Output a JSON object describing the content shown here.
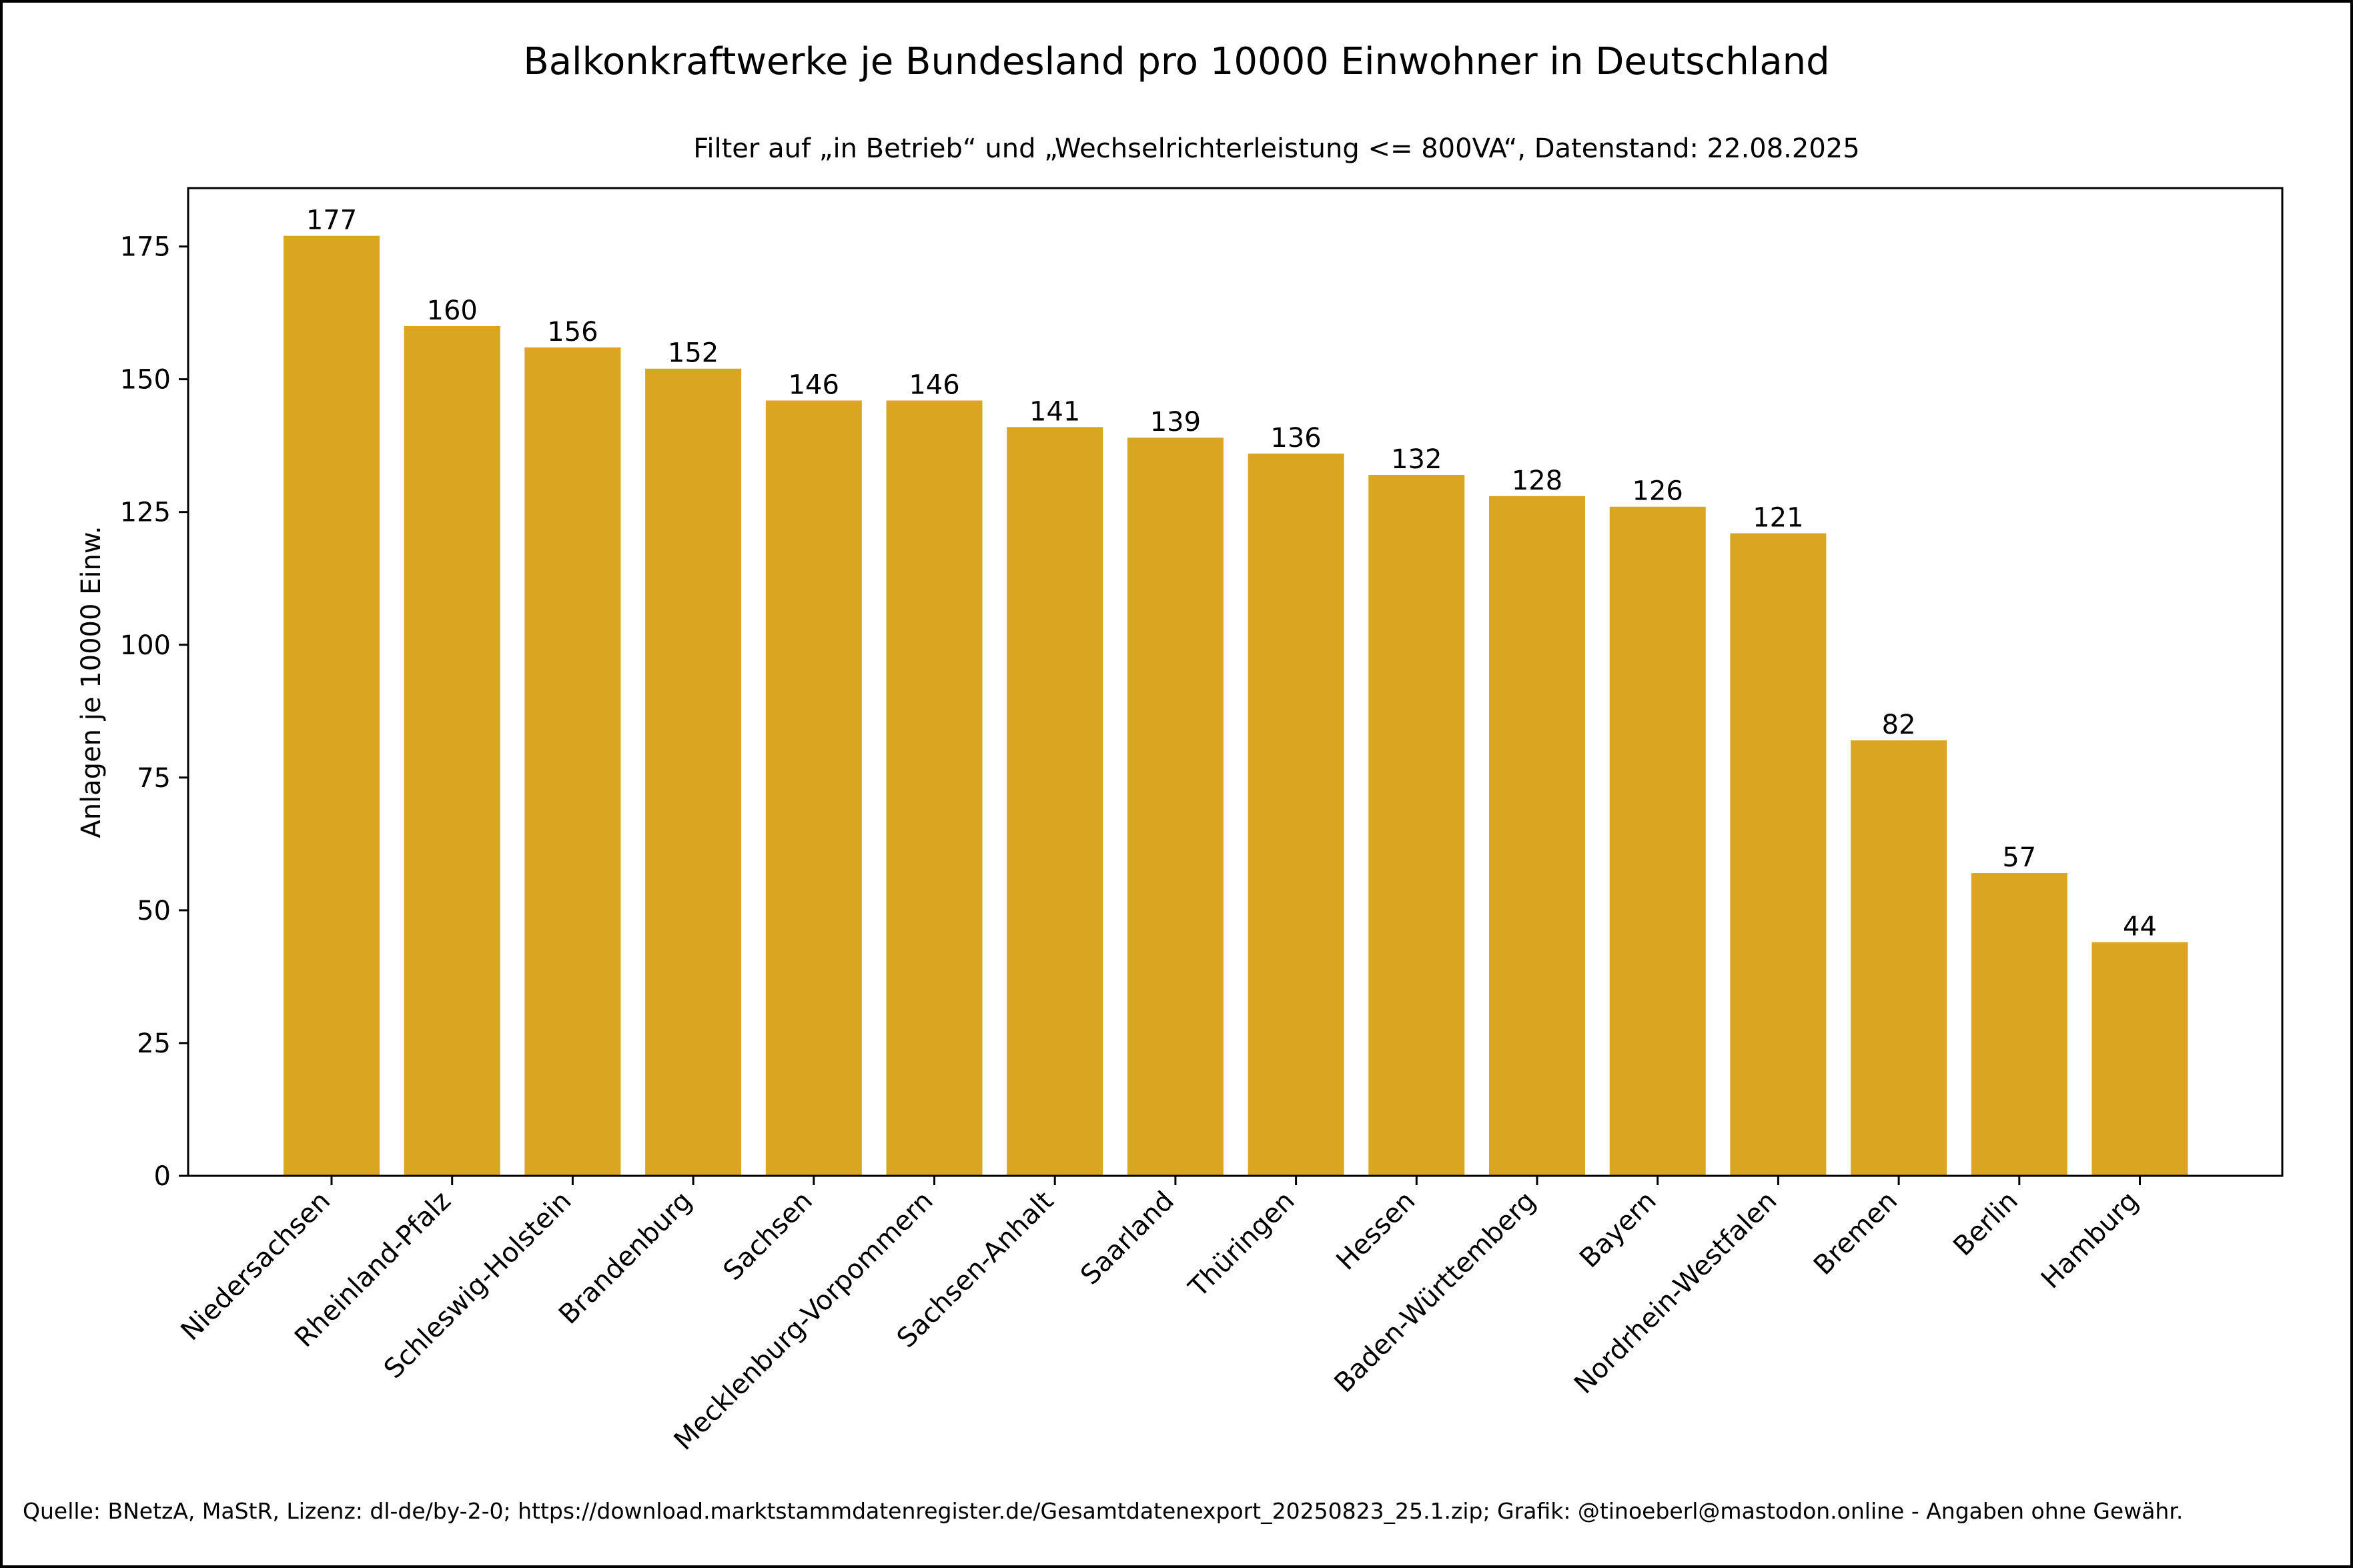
{
  "chart_data": {
    "type": "bar",
    "title": "Balkonkraftwerke je Bundesland pro 10000 Einwohner in Deutschland",
    "subtitle": "Filter auf „in Betrieb“ und „Wechselrichterleistung <= 800VA“, Datenstand: 22.08.2025",
    "xlabel": "",
    "ylabel": "Anlagen je 10000 Einw.",
    "ylim": [
      0,
      186
    ],
    "yticks": [
      0,
      25,
      50,
      75,
      100,
      125,
      150,
      175
    ],
    "categories": [
      "Niedersachsen",
      "Rheinland-Pfalz",
      "Schleswig-Holstein",
      "Brandenburg",
      "Sachsen",
      "Mecklenburg-Vorpommern",
      "Sachsen-Anhalt",
      "Saarland",
      "Thüringen",
      "Hessen",
      "Baden-Württemberg",
      "Bayern",
      "Nordrhein-Westfalen",
      "Bremen",
      "Berlin",
      "Hamburg"
    ],
    "values": [
      177,
      160,
      156,
      152,
      146,
      146,
      141,
      139,
      136,
      132,
      128,
      126,
      121,
      82,
      57,
      44
    ],
    "bar_color": "#DAA520",
    "grid": false,
    "legend": false
  },
  "footer": "Quelle: BNetzA, MaStR, Lizenz: dl-de/by-2-0; https://download.marktstammdatenregister.de/Gesamtdatenexport_20250823_25.1.zip; Grafik: @tinoeberl@mastodon.online - Angaben ohne Gewähr."
}
